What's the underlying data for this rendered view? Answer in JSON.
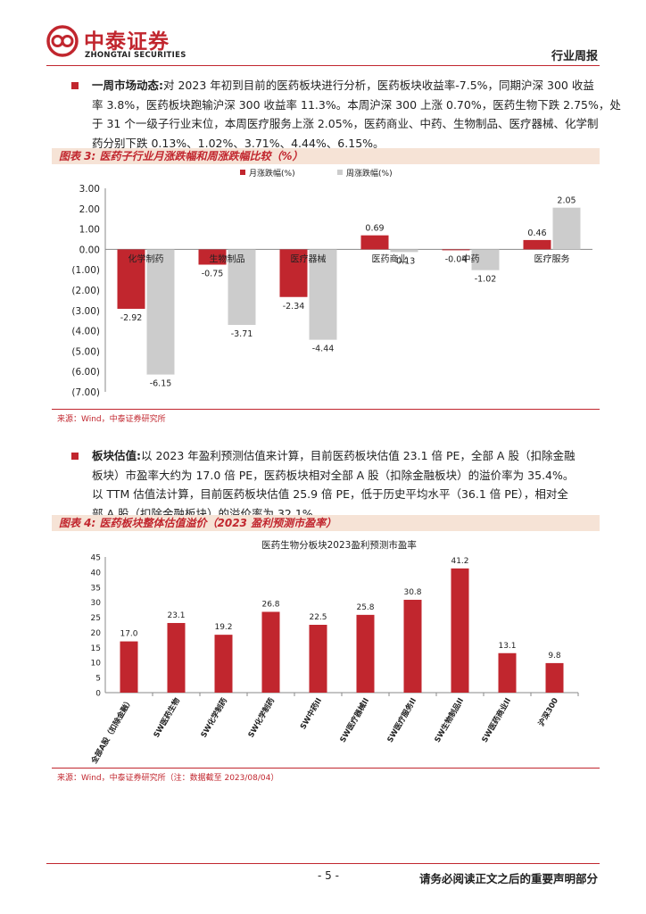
{
  "header": {
    "brand_cn": "中泰证券",
    "brand_en": "ZHONGTAI SECURITIES",
    "report_type": "行业周报"
  },
  "colors": {
    "brand_red": "#c1262e",
    "gray_bar": "#cccccc",
    "fig_title_bg": "#f6e3d6"
  },
  "section1": {
    "label": "一周市场动态:",
    "lines": [
      "对 2023 年初到目前的医药板块进行分析，医药板块收益率-7.5%，同期沪深 300 收益",
      "率 3.8%，医药板块跑输沪深 300 收益率 11.3%。本周沪深 300 上涨 0.70%，医药生物下跌 2.75%，处",
      "于 31 个一级子行业末位，本周医疗服务上涨 2.05%，医药商业、中药、生物制品、医疗器械、化学制",
      "药分别下跌 0.13%、1.02%、3.71%、4.44%、6.15%。"
    ]
  },
  "figure3": {
    "title": "图表 3:  医药子行业月涨跌幅和周涨跌幅比较（%）",
    "source": "来源：Wind，中泰证券研究所"
  },
  "section2": {
    "label": "板块估值:",
    "lines": [
      "以 2023 年盈利预测估值来计算，目前医药板块估值 23.1 倍 PE，全部 A 股（扣除金融",
      "板块）市盈率大约为 17.0 倍 PE，医药板块相对全部 A 股（扣除金融板块）的溢价率为 35.4%。",
      "以 TTM 估值法计算，目前医药板块估值 25.9 倍 PE，低于历史平均水平（36.1 倍 PE），相对全",
      "部 A 股（扣除金融板块）的溢价率为 32.1%。"
    ]
  },
  "figure4": {
    "title": "图表 4:  医药板块整体估值溢价（2023 盈利预测市盈率）",
    "source": "来源：Wind，中泰证券研究所（注：数据截至 2023/08/04）"
  },
  "footer": {
    "page_number": "- 5 -",
    "disclaimer": "请务必阅读正文之后的重要声明部分"
  },
  "chart_data": [
    {
      "type": "bar",
      "title": "",
      "categories": [
        "化学制药",
        "生物制品",
        "医疗器械",
        "医药商业",
        "中药",
        "医疗服务"
      ],
      "series": [
        {
          "name": "月涨跌幅(%)",
          "values": [
            -2.92,
            -0.75,
            -2.34,
            0.69,
            -0.04,
            0.46
          ]
        },
        {
          "name": "周涨跌幅(%)",
          "values": [
            -6.15,
            -3.71,
            -4.44,
            -0.13,
            -1.02,
            2.05
          ]
        }
      ],
      "data_labels": [
        [
          "-2.92",
          "-0.75",
          "-2.34",
          "0.69",
          "-0.04",
          "0.46"
        ],
        [
          "-6.15",
          "-3.71",
          "-4.44",
          "-0.13",
          "-1.02",
          "2.05"
        ]
      ],
      "ylim": [
        -7,
        3
      ],
      "yticks": [
        3,
        2,
        1,
        0,
        -1,
        -2,
        -3,
        -4,
        -5,
        -6,
        -7
      ],
      "ytick_labels": [
        "3.00",
        "2.00",
        "1.00",
        "0.00",
        "(1.00)",
        "(2.00)",
        "(3.00)",
        "(4.00)",
        "(5.00)",
        "(6.00)",
        "(7.00)"
      ],
      "legend": "top-center",
      "grid": false
    },
    {
      "type": "bar",
      "title": "医药生物分板块2023盈利预测市盈率",
      "categories": [
        "全部A股（扣除金融）",
        "SW医药生物",
        "SW化学制药",
        "SW化学制药",
        "SW中药II",
        "SW医疗器械II",
        "SW医疗服务II",
        "SW生物制品II",
        "SW医药商业II",
        "沪深300"
      ],
      "values": [
        17.0,
        23.1,
        19.2,
        26.8,
        22.5,
        25.8,
        30.8,
        41.2,
        13.1,
        9.8
      ],
      "value_labels": [
        "17.0",
        "23.1",
        "19.2",
        "26.8",
        "22.5",
        "25.8",
        "30.8",
        "41.2",
        "13.1",
        "9.8"
      ],
      "ylim": [
        0,
        45
      ],
      "yticks": [
        0,
        5,
        10,
        15,
        20,
        25,
        30,
        35,
        40,
        45
      ],
      "ytick_labels": [
        "0",
        "5",
        "10",
        "15",
        "20",
        "25",
        "30",
        "35",
        "40",
        "45"
      ],
      "grid": false
    }
  ]
}
